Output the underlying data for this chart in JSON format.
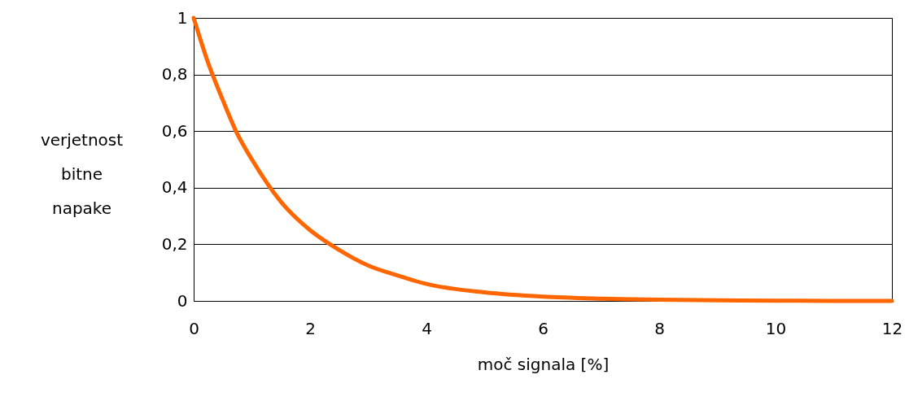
{
  "chart_data": {
    "type": "line",
    "xlabel": "moč signala [%]",
    "ylabel": "verjetnost bitne napake",
    "x": [
      0,
      0.25,
      0.5,
      0.75,
      1,
      1.5,
      2,
      2.5,
      3,
      3.5,
      4,
      5,
      6,
      7,
      8,
      9,
      10,
      11,
      12
    ],
    "series": [
      {
        "color": "#ff6600",
        "values": [
          1,
          0.84,
          0.71,
          0.59,
          0.5,
          0.35,
          0.25,
          0.18,
          0.125,
          0.09,
          0.06,
          0.03,
          0.015,
          0.008,
          0.004,
          0.002,
          0.001,
          0,
          0
        ]
      }
    ],
    "xlim": [
      0,
      12
    ],
    "xticks": [
      0,
      2,
      4,
      6,
      8,
      10,
      12
    ],
    "ylim": [
      0,
      1
    ],
    "yticks": [
      0,
      {
        "value": 0.2,
        "label": "0,2"
      },
      {
        "value": 0.4,
        "label": "0,4"
      },
      {
        "value": 0.6,
        "label": "0,6"
      },
      {
        "value": 0.8,
        "label": "0,8"
      },
      1
    ],
    "grid": "y",
    "marker": "none",
    "line_style": "solid"
  }
}
